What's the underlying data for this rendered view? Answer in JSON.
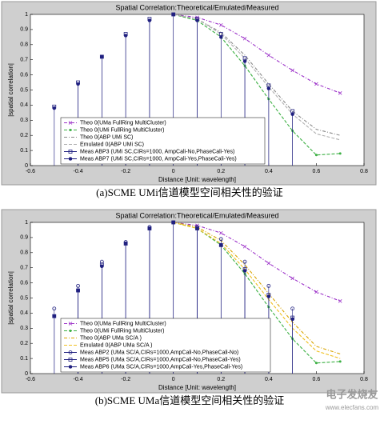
{
  "chart_data": [
    {
      "type": "line",
      "title": "Spatial Correlation:Theoretical/Emulated/Measured",
      "xlabel": "Distance [Unit: wavelength]",
      "ylabel": "|spatial correlation|",
      "caption": "(a)SCME UMi信道模型空间相关性的验证",
      "xlim": [
        -0.6,
        0.8
      ],
      "xticks": [
        -0.6,
        -0.4,
        -0.2,
        0,
        0.2,
        0.4,
        0.6,
        0.8
      ],
      "ylim": [
        0,
        1
      ],
      "yticks": [
        0,
        0.1,
        0.2,
        0.3,
        0.4,
        0.5,
        0.6,
        0.7,
        0.8,
        0.9,
        1
      ],
      "legend": "lower left",
      "series": [
        {
          "name": "Theo 0(UMa FullRing MultiCluster)",
          "color": "#9b30c8",
          "dash": "dashdot",
          "marker": "x",
          "kind": "line",
          "x": [
            0,
            0.1,
            0.2,
            0.3,
            0.4,
            0.5,
            0.6,
            0.7
          ],
          "values": [
            1,
            0.98,
            0.93,
            0.84,
            0.73,
            0.63,
            0.54,
            0.48
          ]
        },
        {
          "name": "Theo 0(UMi FullRing MultiCluster)",
          "color": "#3cb043",
          "dash": "dash",
          "marker": "dot",
          "kind": "line",
          "x": [
            0,
            0.1,
            0.2,
            0.3,
            0.4,
            0.5,
            0.6,
            0.7
          ],
          "values": [
            1,
            0.96,
            0.85,
            0.66,
            0.44,
            0.23,
            0.07,
            0.08
          ]
        },
        {
          "name": "Theo 0(ABP UMi SC)",
          "color": "#8a8a8a",
          "dash": "dashdot",
          "marker": "none",
          "kind": "line",
          "x": [
            0,
            0.1,
            0.2,
            0.3,
            0.4,
            0.5,
            0.6,
            0.7
          ],
          "values": [
            1,
            0.97,
            0.88,
            0.73,
            0.54,
            0.36,
            0.24,
            0.2
          ]
        },
        {
          "name": "Emulated 0(ABP UMi SC)",
          "color": "#b0b0b0",
          "dash": "dash",
          "marker": "none",
          "kind": "line",
          "x": [
            0,
            0.1,
            0.2,
            0.3,
            0.4,
            0.5,
            0.6,
            0.7
          ],
          "values": [
            1,
            0.97,
            0.87,
            0.71,
            0.52,
            0.34,
            0.21,
            0.17
          ]
        },
        {
          "name": "Meas ABP3 (UMi SC,CIRs=1000, AmpCali-No,PhaseCali-Yes)",
          "color": "#202080",
          "dash": "solid",
          "marker": "square",
          "kind": "stem",
          "x": [
            -0.5,
            -0.4,
            -0.3,
            -0.2,
            -0.1,
            0,
            0.1,
            0.2,
            0.3,
            0.4,
            0.5
          ],
          "values": [
            0.39,
            0.55,
            0.72,
            0.87,
            0.97,
            1,
            0.97,
            0.87,
            0.71,
            0.53,
            0.36
          ]
        },
        {
          "name": "Meas ABP7 (UMi SC,CIRs=1000, AmpCali-Yes,PhaseCali-Yes)",
          "color": "#202080",
          "dash": "solid",
          "marker": "star",
          "kind": "stem",
          "x": [
            -0.5,
            -0.4,
            -0.3,
            -0.2,
            -0.1,
            0,
            0.1,
            0.2,
            0.3,
            0.4,
            0.5
          ],
          "values": [
            0.38,
            0.54,
            0.72,
            0.86,
            0.96,
            1,
            0.96,
            0.85,
            0.69,
            0.51,
            0.34
          ]
        }
      ]
    },
    {
      "type": "line",
      "title": "Spatial Correlation:Theoretical/Emulated/Measured",
      "xlabel": "Distance [Unit: wavelength]",
      "ylabel": "|spatial correlation|",
      "caption": "(b)SCME UMa信道模型空间相关性的验证",
      "xlim": [
        -0.6,
        0.8
      ],
      "xticks": [
        -0.6,
        -0.4,
        -0.2,
        0,
        0.2,
        0.4,
        0.6,
        0.8
      ],
      "ylim": [
        0,
        1
      ],
      "yticks": [
        0,
        0.1,
        0.2,
        0.3,
        0.4,
        0.5,
        0.6,
        0.7,
        0.8,
        0.9,
        1
      ],
      "legend": "lower left",
      "series": [
        {
          "name": "Theo 0(UMa FullRing MultiCluster)",
          "color": "#9b30c8",
          "dash": "dashdot",
          "marker": "x",
          "kind": "line",
          "x": [
            0,
            0.1,
            0.2,
            0.3,
            0.4,
            0.5,
            0.6,
            0.7
          ],
          "values": [
            1,
            0.98,
            0.93,
            0.84,
            0.73,
            0.63,
            0.54,
            0.48
          ]
        },
        {
          "name": "Theo 0(UMi FullRing MultiCluster)",
          "color": "#3cb043",
          "dash": "dash",
          "marker": "dot",
          "kind": "line",
          "x": [
            0,
            0.1,
            0.2,
            0.3,
            0.4,
            0.5,
            0.6,
            0.7
          ],
          "values": [
            1,
            0.96,
            0.85,
            0.66,
            0.44,
            0.23,
            0.07,
            0.08
          ]
        },
        {
          "name": "Theo 0(ABP UMa SC/A )",
          "color": "#d9a400",
          "dash": "dashdot",
          "marker": "none",
          "kind": "line",
          "x": [
            0,
            0.1,
            0.2,
            0.3,
            0.4,
            0.5,
            0.6,
            0.7
          ],
          "values": [
            1,
            0.97,
            0.88,
            0.72,
            0.53,
            0.34,
            0.18,
            0.13
          ]
        },
        {
          "name": "Emulated 0(ABP UMa SC/A )",
          "color": "#f0c020",
          "dash": "dash",
          "marker": "none",
          "kind": "line",
          "x": [
            0,
            0.1,
            0.2,
            0.3,
            0.4,
            0.5,
            0.6,
            0.7
          ],
          "values": [
            1,
            0.96,
            0.86,
            0.69,
            0.49,
            0.3,
            0.15,
            0.1
          ]
        },
        {
          "name": "Meas ABP2 (UMa SC/A,CIRs=1000,AmpCali-No,PhaseCali-No)",
          "color": "#202080",
          "dash": "solid",
          "marker": "circle",
          "kind": "stem",
          "x": [
            -0.5,
            -0.4,
            -0.3,
            -0.2,
            -0.1,
            0,
            0.1,
            0.2,
            0.3,
            0.4,
            0.5
          ],
          "values": [
            0.43,
            0.58,
            0.74,
            0.87,
            0.97,
            1,
            0.97,
            0.89,
            0.74,
            0.58,
            0.43
          ]
        },
        {
          "name": "Meas ABP5 (UMa SC/A,CIRs=1000,AmpCali-No,PhaseCali-Yes)",
          "color": "#202080",
          "dash": "solid",
          "marker": "square",
          "kind": "stem",
          "x": [
            -0.5,
            -0.4,
            -0.3,
            -0.2,
            -0.1,
            0,
            0.1,
            0.2,
            0.3,
            0.4,
            0.5
          ],
          "values": [
            0.38,
            0.55,
            0.72,
            0.86,
            0.96,
            1,
            0.96,
            0.85,
            0.69,
            0.52,
            0.37
          ]
        },
        {
          "name": "Meas ABP6 (UMa SC/A,CIRs=1000,AmpCali-Yes,PhaseCali-Yes)",
          "color": "#202080",
          "dash": "solid",
          "marker": "star",
          "kind": "stem",
          "x": [
            -0.5,
            -0.4,
            -0.3,
            -0.2,
            -0.1,
            0,
            0.1,
            0.2,
            0.3,
            0.4,
            0.5
          ],
          "values": [
            0.38,
            0.55,
            0.71,
            0.86,
            0.96,
            1,
            0.96,
            0.85,
            0.68,
            0.51,
            0.36
          ]
        }
      ]
    }
  ],
  "watermark": {
    "brand": "电子发烧友",
    "url": "www.elecfans.com"
  }
}
